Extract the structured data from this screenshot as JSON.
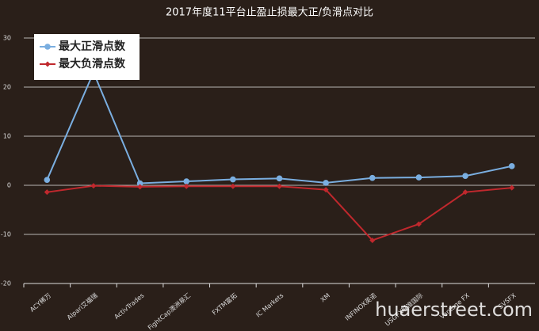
{
  "chart_data": {
    "type": "line",
    "title": "2017年度11平台止盈止损最大正/负滑点对比",
    "categories": [
      "ACY稀万",
      "Alpari艾福瑞",
      "ActivTrades",
      "FightCap澳洲易汇",
      "FXTM富拓",
      "IC Markets",
      "XM",
      "INFINOX英诺",
      "USGFX联准国际",
      "Vantage FX",
      "SVSFX"
    ],
    "series": [
      {
        "name": "最大正滑点数",
        "color": "#7aaee0",
        "values": [
          1.1,
          23,
          0.4,
          0.8,
          1.2,
          1.4,
          0.5,
          1.5,
          1.6,
          1.9,
          3.9
        ]
      },
      {
        "name": "最大负滑点数",
        "color": "#c0282d",
        "values": [
          -1.4,
          -0.1,
          -0.3,
          -0.2,
          -0.2,
          -0.2,
          -0.9,
          -11.2,
          -7.9,
          -1.4,
          -0.5
        ]
      }
    ],
    "ylim": [
      -20,
      30
    ],
    "yticks": [
      -20,
      -10,
      0,
      10,
      20,
      30
    ],
    "grid": true,
    "legend": "top-left",
    "watermark": "huaerstreet.com"
  }
}
